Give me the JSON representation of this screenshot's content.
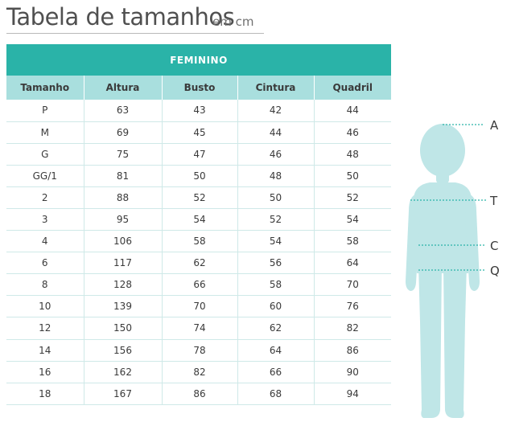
{
  "title": {
    "main": "Tabela de tamanhos",
    "unit": "em cm"
  },
  "table": {
    "section": "FEMININO",
    "headers": [
      "Tamanho",
      "Altura",
      "Busto",
      "Cintura",
      "Quadril"
    ],
    "rows": [
      [
        "P",
        "63",
        "43",
        "42",
        "44"
      ],
      [
        "M",
        "69",
        "45",
        "44",
        "46"
      ],
      [
        "G",
        "75",
        "47",
        "46",
        "48"
      ],
      [
        "GG/1",
        "81",
        "50",
        "48",
        "50"
      ],
      [
        "2",
        "88",
        "52",
        "50",
        "52"
      ],
      [
        "3",
        "95",
        "54",
        "52",
        "54"
      ],
      [
        "4",
        "106",
        "58",
        "54",
        "58"
      ],
      [
        "6",
        "117",
        "62",
        "56",
        "64"
      ],
      [
        "8",
        "128",
        "66",
        "58",
        "70"
      ],
      [
        "10",
        "139",
        "70",
        "60",
        "76"
      ],
      [
        "12",
        "150",
        "74",
        "62",
        "82"
      ],
      [
        "14",
        "156",
        "78",
        "64",
        "86"
      ],
      [
        "16",
        "162",
        "82",
        "66",
        "90"
      ],
      [
        "18",
        "167",
        "86",
        "68",
        "94"
      ]
    ]
  },
  "figure": {
    "labels": [
      "A",
      "T",
      "C",
      "Q"
    ]
  },
  "colors": {
    "header_teal": "#2ab3a8",
    "subheader": "#a9dfde",
    "figure_fill": "#bfe6e7",
    "dotted_line": "#2ab3a8"
  }
}
